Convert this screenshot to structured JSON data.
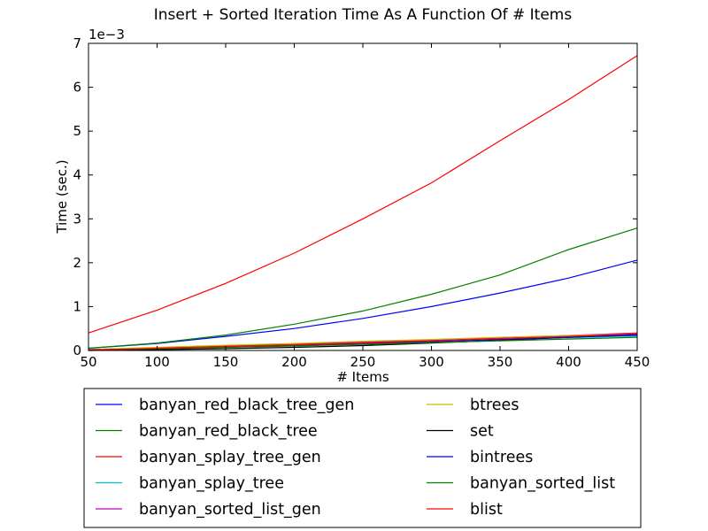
{
  "chart_data": {
    "type": "line",
    "title": "Insert + Sorted Iteration Time As A Function Of # Items",
    "xlabel": "# Items",
    "ylabel": "Time (sec.)",
    "y_scale_label": "1e−3",
    "xlim": [
      50,
      450
    ],
    "ylim": [
      0,
      7
    ],
    "x_ticks": [
      "50",
      "100",
      "150",
      "200",
      "250",
      "300",
      "350",
      "400",
      "450"
    ],
    "y_ticks": [
      "0",
      "1",
      "2",
      "3",
      "4",
      "5",
      "6",
      "7"
    ],
    "grid": false,
    "legend_placement": "below",
    "x": [
      50,
      100,
      150,
      200,
      250,
      300,
      350,
      400,
      450
    ],
    "series": [
      {
        "name": "banyan_red_black_tree_gen",
        "color": "#0000ff",
        "values": [
          0.05,
          0.16,
          0.32,
          0.5,
          0.73,
          1.0,
          1.31,
          1.65,
          2.06
        ]
      },
      {
        "name": "banyan_red_black_tree",
        "color": "#008000",
        "values": [
          0.05,
          0.17,
          0.35,
          0.6,
          0.9,
          1.28,
          1.72,
          2.3,
          2.79
        ]
      },
      {
        "name": "banyan_splay_tree_gen",
        "color": "#ff0000",
        "values": [
          0.4,
          0.92,
          1.53,
          2.22,
          3.0,
          3.82,
          4.78,
          5.72,
          6.72
        ]
      },
      {
        "name": "banyan_splay_tree",
        "color": "#00bfbf",
        "values": [
          0.01,
          0.05,
          0.09,
          0.13,
          0.17,
          0.21,
          0.25,
          0.29,
          0.33
        ]
      },
      {
        "name": "banyan_sorted_list_gen",
        "color": "#bf00bf",
        "values": [
          0.02,
          0.06,
          0.1,
          0.14,
          0.19,
          0.24,
          0.29,
          0.34,
          0.4
        ]
      },
      {
        "name": "btrees",
        "color": "#bfbf00",
        "values": [
          0.02,
          0.07,
          0.12,
          0.16,
          0.21,
          0.25,
          0.3,
          0.34,
          0.38
        ]
      },
      {
        "name": "set",
        "color": "#000000",
        "values": [
          0.0,
          0.02,
          0.04,
          0.07,
          0.11,
          0.17,
          0.23,
          0.3,
          0.37
        ]
      },
      {
        "name": "bintrees",
        "color": "#0000ff",
        "values": [
          0.01,
          0.04,
          0.08,
          0.12,
          0.16,
          0.2,
          0.25,
          0.3,
          0.35
        ]
      },
      {
        "name": "banyan_sorted_list",
        "color": "#008000",
        "values": [
          0.01,
          0.04,
          0.07,
          0.1,
          0.14,
          0.18,
          0.22,
          0.26,
          0.3
        ]
      },
      {
        "name": "blist",
        "color": "#ff0000",
        "values": [
          0.01,
          0.05,
          0.09,
          0.13,
          0.17,
          0.22,
          0.27,
          0.32,
          0.38
        ]
      }
    ]
  }
}
